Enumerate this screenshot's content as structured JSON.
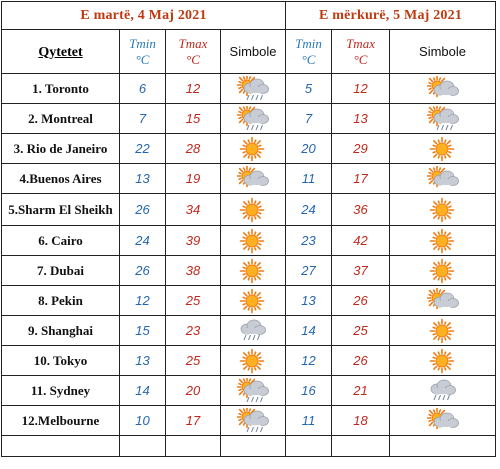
{
  "header": {
    "day1": "E martë, 4 Maj 2021",
    "day2": "E mërkurë, 5 Maj 2021"
  },
  "columns": {
    "city": "Qytetet",
    "tmin": "Tmin",
    "tmax": "Tmax",
    "unit": "°C",
    "symbols": "Simbole"
  },
  "rows": [
    {
      "city": "1. Toronto",
      "d1": {
        "tmin": "6",
        "tmax": "12",
        "icon": "sun-cloud-rain-icon"
      },
      "d2": {
        "tmin": "5",
        "tmax": "12",
        "icon": "sun-cloud-icon"
      }
    },
    {
      "city": "2. Montreal",
      "d1": {
        "tmin": "7",
        "tmax": "15",
        "icon": "sun-cloud-rain-icon"
      },
      "d2": {
        "tmin": "7",
        "tmax": "13",
        "icon": "sun-cloud-rain-icon"
      }
    },
    {
      "city": "3. Rio de Janeiro",
      "d1": {
        "tmin": "22",
        "tmax": "28",
        "icon": "sun-icon"
      },
      "d2": {
        "tmin": "20",
        "tmax": "29",
        "icon": "sun-icon"
      }
    },
    {
      "city": "4.Buenos Aires",
      "d1": {
        "tmin": "13",
        "tmax": "19",
        "icon": "sun-cloud-icon"
      },
      "d2": {
        "tmin": "11",
        "tmax": "17",
        "icon": "sun-cloud-icon"
      }
    },
    {
      "city": "5.Sharm El Sheikh",
      "d1": {
        "tmin": "26",
        "tmax": "34",
        "icon": "sun-icon"
      },
      "d2": {
        "tmin": "24",
        "tmax": "36",
        "icon": "sun-icon"
      }
    },
    {
      "city": "6. Cairo",
      "d1": {
        "tmin": "24",
        "tmax": "39",
        "icon": "sun-icon"
      },
      "d2": {
        "tmin": "23",
        "tmax": "42",
        "icon": "sun-icon"
      }
    },
    {
      "city": "7. Dubai",
      "d1": {
        "tmin": "26",
        "tmax": "38",
        "icon": "sun-icon"
      },
      "d2": {
        "tmin": "27",
        "tmax": "37",
        "icon": "sun-icon"
      }
    },
    {
      "city": "8. Pekin",
      "d1": {
        "tmin": "12",
        "tmax": "25",
        "icon": "sun-icon"
      },
      "d2": {
        "tmin": "13",
        "tmax": "26",
        "icon": "sun-cloud-icon"
      }
    },
    {
      "city": "9. Shanghai",
      "d1": {
        "tmin": "15",
        "tmax": "23",
        "icon": "cloud-rain-icon"
      },
      "d2": {
        "tmin": "14",
        "tmax": "25",
        "icon": "sun-icon"
      }
    },
    {
      "city": "10. Tokyo",
      "d1": {
        "tmin": "13",
        "tmax": "25",
        "icon": "sun-icon"
      },
      "d2": {
        "tmin": "12",
        "tmax": "26",
        "icon": "sun-icon"
      }
    },
    {
      "city": "11. Sydney",
      "d1": {
        "tmin": "14",
        "tmax": "20",
        "icon": "sun-cloud-rain-icon"
      },
      "d2": {
        "tmin": "16",
        "tmax": "21",
        "icon": "cloud-rain-icon"
      }
    },
    {
      "city": "12.Melbourne",
      "d1": {
        "tmin": "10",
        "tmax": "17",
        "icon": "sun-cloud-rain-icon"
      },
      "d2": {
        "tmin": "11",
        "tmax": "18",
        "icon": "sun-cloud-icon"
      }
    }
  ],
  "colors": {
    "header_text": "#c03a10",
    "tmin": "#2566b0",
    "tmax": "#c0281c",
    "sun": "#f07a10",
    "cloud": "#c8ccd4"
  }
}
